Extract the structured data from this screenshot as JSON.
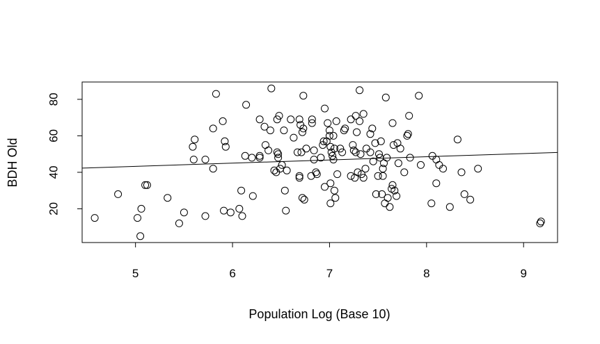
{
  "chart_data": {
    "type": "scatter",
    "title": "",
    "xlabel": "Population Log (Base 10)",
    "ylabel": "BDH Old",
    "xlim": [
      4.45,
      9.35
    ],
    "ylim": [
      1.5,
      89.5
    ],
    "xticks": [
      "5",
      "6",
      "7",
      "8",
      "9"
    ],
    "yticks": [
      "20",
      "40",
      "60",
      "80"
    ],
    "grid": false,
    "point_style": "open-circle",
    "colors": {
      "points": "#000000",
      "line": "#000000",
      "axes": "#000000",
      "background": "#ffffff"
    },
    "regression_line": {
      "x": [
        4.45,
        9.35
      ],
      "y": [
        42.3,
        50.9
      ]
    },
    "points": [
      [
        4.58,
        15
      ],
      [
        4.82,
        28
      ],
      [
        5.02,
        15
      ],
      [
        5.05,
        5
      ],
      [
        5.06,
        20
      ],
      [
        5.1,
        33
      ],
      [
        5.12,
        33
      ],
      [
        5.33,
        26
      ],
      [
        5.45,
        12
      ],
      [
        5.5,
        18
      ],
      [
        5.59,
        54
      ],
      [
        5.6,
        47
      ],
      [
        5.61,
        58
      ],
      [
        5.72,
        16
      ],
      [
        5.72,
        47
      ],
      [
        5.8,
        64
      ],
      [
        5.8,
        42
      ],
      [
        5.83,
        83
      ],
      [
        5.9,
        68
      ],
      [
        5.91,
        19
      ],
      [
        5.92,
        57
      ],
      [
        5.93,
        54
      ],
      [
        5.98,
        18
      ],
      [
        6.07,
        20
      ],
      [
        6.09,
        30
      ],
      [
        6.1,
        16
      ],
      [
        6.13,
        49
      ],
      [
        6.14,
        77
      ],
      [
        6.2,
        48
      ],
      [
        6.21,
        27
      ],
      [
        6.28,
        48
      ],
      [
        6.28,
        49
      ],
      [
        6.28,
        69
      ],
      [
        6.33,
        65
      ],
      [
        6.34,
        55
      ],
      [
        6.37,
        52
      ],
      [
        6.39,
        63
      ],
      [
        6.4,
        86
      ],
      [
        6.43,
        41
      ],
      [
        6.45,
        40
      ],
      [
        6.46,
        51
      ],
      [
        6.46,
        69
      ],
      [
        6.47,
        50
      ],
      [
        6.47,
        48
      ],
      [
        6.48,
        71
      ],
      [
        6.49,
        42
      ],
      [
        6.51,
        44
      ],
      [
        6.53,
        63
      ],
      [
        6.54,
        30
      ],
      [
        6.55,
        19
      ],
      [
        6.56,
        41
      ],
      [
        6.6,
        69
      ],
      [
        6.63,
        59
      ],
      [
        6.67,
        51
      ],
      [
        6.69,
        37
      ],
      [
        6.69,
        38
      ],
      [
        6.69,
        69
      ],
      [
        6.7,
        66
      ],
      [
        6.71,
        51
      ],
      [
        6.72,
        62
      ],
      [
        6.72,
        26
      ],
      [
        6.73,
        64
      ],
      [
        6.73,
        82
      ],
      [
        6.74,
        25
      ],
      [
        6.76,
        53
      ],
      [
        6.81,
        38
      ],
      [
        6.82,
        67
      ],
      [
        6.82,
        69
      ],
      [
        6.84,
        52
      ],
      [
        6.84,
        47
      ],
      [
        6.86,
        40
      ],
      [
        6.87,
        39
      ],
      [
        6.91,
        48
      ],
      [
        6.93,
        55
      ],
      [
        6.94,
        57
      ],
      [
        6.95,
        75
      ],
      [
        6.95,
        32
      ],
      [
        6.97,
        57
      ],
      [
        6.98,
        67
      ],
      [
        7.0,
        60
      ],
      [
        7.0,
        63
      ],
      [
        7.01,
        54
      ],
      [
        7.01,
        23
      ],
      [
        7.01,
        34
      ],
      [
        7.02,
        51
      ],
      [
        7.03,
        49
      ],
      [
        7.04,
        60
      ],
      [
        7.04,
        47
      ],
      [
        7.05,
        53
      ],
      [
        7.05,
        30
      ],
      [
        7.06,
        26
      ],
      [
        7.07,
        68
      ],
      [
        7.08,
        39
      ],
      [
        7.11,
        53
      ],
      [
        7.13,
        51
      ],
      [
        7.15,
        63
      ],
      [
        7.16,
        64
      ],
      [
        7.22,
        69
      ],
      [
        7.22,
        38
      ],
      [
        7.24,
        55
      ],
      [
        7.25,
        52
      ],
      [
        7.26,
        37
      ],
      [
        7.27,
        51
      ],
      [
        7.27,
        71
      ],
      [
        7.28,
        62
      ],
      [
        7.29,
        40
      ],
      [
        7.31,
        85
      ],
      [
        7.31,
        68
      ],
      [
        7.32,
        50
      ],
      [
        7.33,
        39
      ],
      [
        7.35,
        72
      ],
      [
        7.35,
        37
      ],
      [
        7.37,
        42
      ],
      [
        7.38,
        53
      ],
      [
        7.42,
        61
      ],
      [
        7.42,
        51
      ],
      [
        7.44,
        64
      ],
      [
        7.45,
        46
      ],
      [
        7.47,
        56
      ],
      [
        7.48,
        28
      ],
      [
        7.5,
        38
      ],
      [
        7.51,
        50
      ],
      [
        7.52,
        48
      ],
      [
        7.53,
        57
      ],
      [
        7.54,
        28
      ],
      [
        7.55,
        38
      ],
      [
        7.55,
        42
      ],
      [
        7.56,
        45
      ],
      [
        7.57,
        23
      ],
      [
        7.58,
        81
      ],
      [
        7.59,
        48
      ],
      [
        7.6,
        26
      ],
      [
        7.62,
        21
      ],
      [
        7.64,
        31
      ],
      [
        7.65,
        33
      ],
      [
        7.65,
        67
      ],
      [
        7.66,
        55
      ],
      [
        7.67,
        30
      ],
      [
        7.69,
        27
      ],
      [
        7.7,
        56
      ],
      [
        7.71,
        45
      ],
      [
        7.73,
        53
      ],
      [
        7.77,
        40
      ],
      [
        7.8,
        60
      ],
      [
        7.81,
        61
      ],
      [
        7.82,
        71
      ],
      [
        7.83,
        48
      ],
      [
        7.92,
        82
      ],
      [
        7.94,
        44
      ],
      [
        8.05,
        23
      ],
      [
        8.06,
        49
      ],
      [
        8.1,
        47
      ],
      [
        8.1,
        34
      ],
      [
        8.13,
        44
      ],
      [
        8.17,
        42
      ],
      [
        8.24,
        21
      ],
      [
        8.32,
        58
      ],
      [
        8.36,
        40
      ],
      [
        8.39,
        28
      ],
      [
        8.45,
        25
      ],
      [
        8.53,
        42
      ],
      [
        9.17,
        12
      ],
      [
        9.18,
        13
      ]
    ]
  }
}
